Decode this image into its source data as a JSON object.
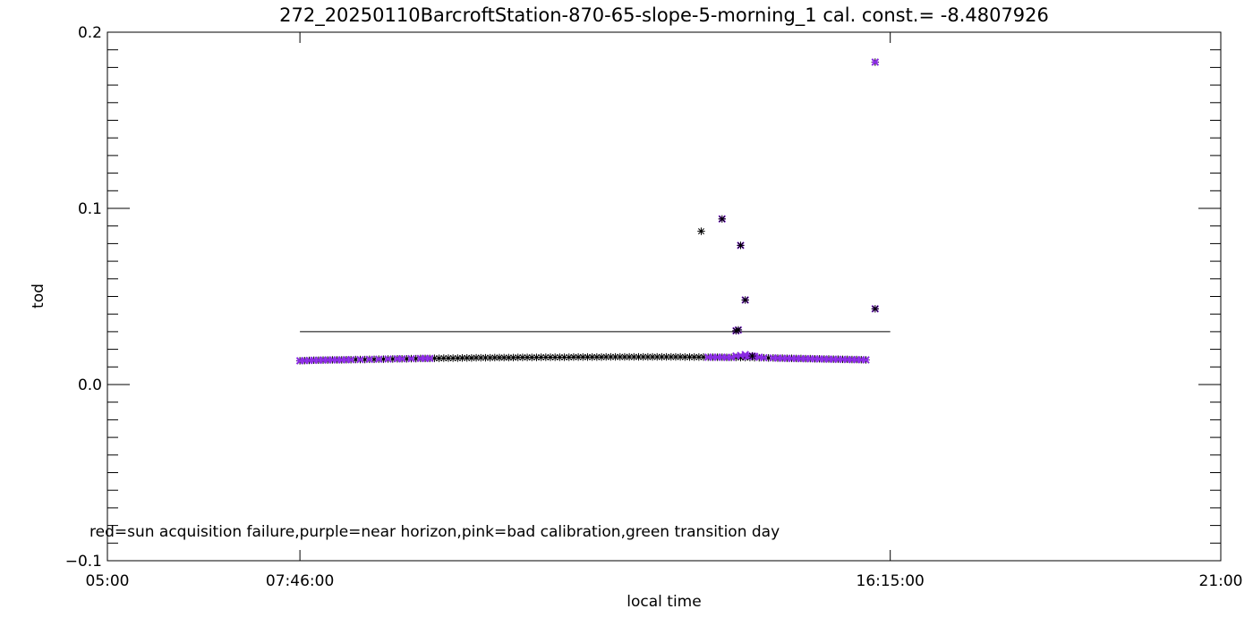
{
  "chart_data": {
    "type": "scatter",
    "title": "272_20250110BarcroftStation-870-65-slope-5-morning_1 cal. const.= -8.4807926",
    "xlabel": "local time",
    "ylabel": "tod",
    "xlim": [
      "05:00",
      "21:00"
    ],
    "ylim": [
      -0.1,
      0.2
    ],
    "x_ticks": [
      "05:00",
      "07:46:00",
      "16:15:00",
      "21:00"
    ],
    "y_ticks": [
      "-0.1",
      "0.0",
      "0.1",
      "0.2"
    ],
    "annotation": "red=sun acquisition failure,purple=near horizon,pink=bad calibration,green transition day",
    "reference_line": {
      "y": 0.03,
      "x_start": "07:46",
      "x_end": "16:15"
    },
    "colors": {
      "normal": "#000000",
      "near_horizon": "#8a2be2"
    },
    "series": [
      {
        "marker": "asterisk",
        "color": "#000000",
        "x": [
          "07:46",
          "07:50",
          "07:54",
          "07:58",
          "08:02",
          "08:06",
          "08:10",
          "08:14",
          "08:18",
          "08:22",
          "08:26",
          "08:30",
          "08:34",
          "08:38",
          "08:42",
          "08:46",
          "08:50",
          "08:54",
          "08:58",
          "09:02",
          "09:06",
          "09:10",
          "09:14",
          "09:18",
          "09:22",
          "09:26",
          "09:30",
          "09:34",
          "09:38",
          "09:42",
          "09:46",
          "09:50",
          "09:54",
          "09:58",
          "10:02",
          "10:06",
          "10:10",
          "10:14",
          "10:18",
          "10:22",
          "10:26",
          "10:30",
          "10:34",
          "10:38",
          "10:42",
          "10:46",
          "10:50",
          "10:54",
          "10:58",
          "11:02",
          "11:06",
          "11:10",
          "11:14",
          "11:18",
          "11:22",
          "11:26",
          "11:30",
          "11:34",
          "11:38",
          "11:42",
          "11:46",
          "11:50",
          "11:54",
          "11:58",
          "12:02",
          "12:06",
          "12:10",
          "12:14",
          "12:18",
          "12:22",
          "12:26",
          "12:30",
          "12:34",
          "12:38",
          "12:42",
          "12:46",
          "12:50",
          "12:54",
          "12:58",
          "13:02",
          "13:06",
          "13:10",
          "13:14",
          "13:18",
          "13:22",
          "13:26",
          "13:30",
          "13:34",
          "13:38",
          "13:42",
          "13:46",
          "13:50",
          "13:54",
          "13:58",
          "14:02",
          "14:06",
          "14:10",
          "14:14",
          "14:18",
          "14:22",
          "14:26",
          "14:30",
          "14:34",
          "14:38",
          "14:42",
          "14:46",
          "14:50",
          "14:54",
          "14:58",
          "15:02",
          "15:06",
          "15:10",
          "15:14",
          "15:18",
          "15:22",
          "15:26",
          "15:30",
          "15:34",
          "15:38",
          "15:42",
          "15:46",
          "15:50",
          "15:54",
          "16:02"
        ],
        "y": [
          0.0135,
          0.0136,
          0.0137,
          0.0138,
          0.0138,
          0.0139,
          0.0139,
          0.014,
          0.014,
          0.014,
          0.0141,
          0.0141,
          0.0142,
          0.0142,
          0.0142,
          0.0143,
          0.0143,
          0.0144,
          0.0144,
          0.0145,
          0.0145,
          0.0146,
          0.0146,
          0.0146,
          0.0147,
          0.0147,
          0.0148,
          0.0148,
          0.0148,
          0.0149,
          0.0149,
          0.015,
          0.015,
          0.015,
          0.015,
          0.0151,
          0.0151,
          0.0151,
          0.0152,
          0.0152,
          0.0152,
          0.0152,
          0.0153,
          0.0153,
          0.0153,
          0.0153,
          0.0153,
          0.0154,
          0.0154,
          0.0154,
          0.0154,
          0.0154,
          0.0155,
          0.0155,
          0.0155,
          0.0155,
          0.0155,
          0.0155,
          0.0155,
          0.0156,
          0.0156,
          0.0156,
          0.0156,
          0.0156,
          0.0156,
          0.0156,
          0.0157,
          0.0157,
          0.0157,
          0.0157,
          0.0157,
          0.0157,
          0.0157,
          0.0157,
          0.0157,
          0.0157,
          0.0157,
          0.0157,
          0.0157,
          0.0157,
          0.0157,
          0.0157,
          0.0157,
          0.0156,
          0.0156,
          0.0156,
          0.0156,
          0.0156,
          0.0155,
          0.0155,
          0.0155,
          0.0155,
          0.0154,
          0.0154,
          0.0154,
          0.0153,
          0.0153,
          0.0153,
          0.0152,
          0.0152,
          0.0152,
          0.0151,
          0.0151,
          0.015,
          0.015,
          0.0149,
          0.0149,
          0.0148,
          0.0148,
          0.0147,
          0.0147,
          0.0146,
          0.0146,
          0.0145,
          0.0145,
          0.0144,
          0.0144,
          0.0143,
          0.0143,
          0.0142,
          0.0142,
          0.0141,
          0.014,
          0.183
        ]
      },
      {
        "marker": "x-purple",
        "color": "#8a2be2",
        "x": [
          "07:46",
          "07:50",
          "07:54",
          "07:58",
          "08:02",
          "08:06",
          "08:10",
          "08:14",
          "08:18",
          "08:22",
          "08:26",
          "08:30",
          "08:38",
          "08:46",
          "08:54",
          "09:02",
          "09:10",
          "09:14",
          "09:22",
          "09:30",
          "09:34",
          "09:38",
          "13:38",
          "13:42",
          "13:46",
          "13:50",
          "13:54",
          "13:58",
          "14:02",
          "14:06",
          "14:10",
          "14:14",
          "14:18",
          "14:22",
          "14:26",
          "14:34",
          "14:38",
          "14:42",
          "14:46",
          "14:50",
          "14:54",
          "14:58",
          "15:02",
          "15:06",
          "15:10",
          "15:14",
          "15:18",
          "15:22",
          "15:26",
          "15:30",
          "15:34",
          "15:38",
          "15:42",
          "15:46",
          "15:50",
          "15:54",
          "14:02",
          "14:04",
          "14:06",
          "14:10",
          "14:12",
          "13:50",
          "14:16",
          "16:02",
          "16:02"
        ],
        "y": [
          0.0135,
          0.0136,
          0.0137,
          0.0138,
          0.0138,
          0.0139,
          0.0139,
          0.014,
          0.014,
          0.014,
          0.0141,
          0.0141,
          0.0142,
          0.0143,
          0.0144,
          0.0145,
          0.0146,
          0.0146,
          0.0147,
          0.0148,
          0.0148,
          0.0148,
          0.0155,
          0.0155,
          0.0155,
          0.0155,
          0.0154,
          0.0154,
          0.0162,
          0.0165,
          0.017,
          0.0163,
          0.016,
          0.0155,
          0.0152,
          0.0151,
          0.015,
          0.0149,
          0.0149,
          0.0148,
          0.0148,
          0.0147,
          0.0147,
          0.0146,
          0.0146,
          0.0145,
          0.0145,
          0.0144,
          0.0144,
          0.0143,
          0.0143,
          0.0142,
          0.0142,
          0.0141,
          0.0141,
          0.014,
          0.0305,
          0.031,
          0.079,
          0.048,
          0.0158,
          0.094,
          0.0162,
          0.183,
          0.043
        ]
      },
      {
        "marker": "asterisk",
        "color": "#000000",
        "x": [
          "13:32",
          "13:50",
          "14:02",
          "14:04",
          "14:06",
          "14:10",
          "14:16",
          "16:02"
        ],
        "y": [
          0.087,
          0.094,
          0.0305,
          0.031,
          0.079,
          0.048,
          0.0162,
          0.043
        ]
      }
    ]
  }
}
